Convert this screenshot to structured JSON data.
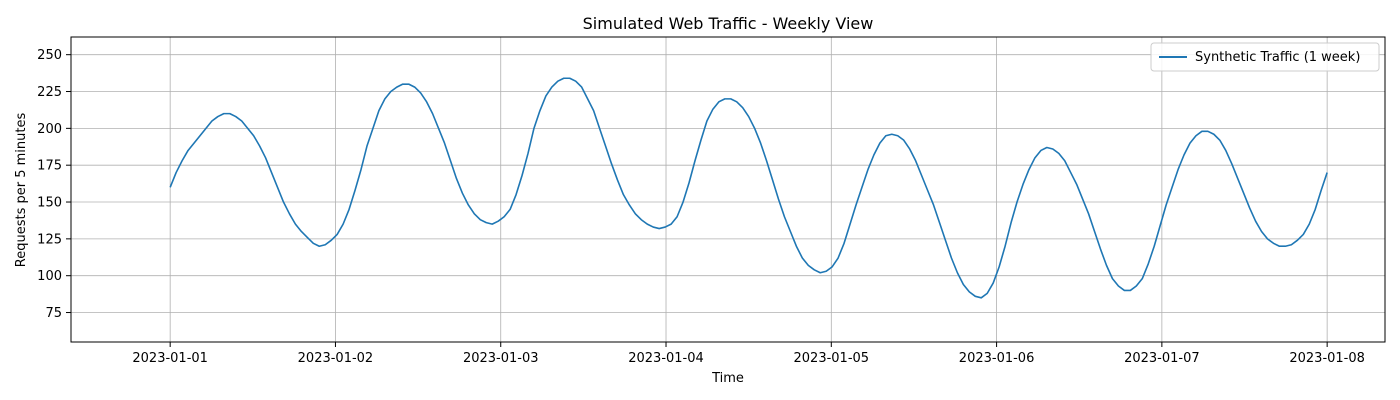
{
  "chart_data": {
    "type": "line",
    "title": "Simulated Web Traffic - Weekly View",
    "xlabel": "Time",
    "ylabel": "Requests per 5 minutes",
    "x_ticks": [
      "2023-01-01",
      "2023-01-02",
      "2023-01-03",
      "2023-01-04",
      "2023-01-05",
      "2023-01-06",
      "2023-01-07",
      "2023-01-08"
    ],
    "y_ticks": [
      75,
      100,
      125,
      150,
      175,
      200,
      225,
      250
    ],
    "xlim": [
      "2022-12-31T09:36",
      "2023-01-08T08:24"
    ],
    "ylim": [
      55,
      262
    ],
    "grid": true,
    "legend": "top-right",
    "series": [
      {
        "name": "Synthetic Traffic (1 week)",
        "color": "#1f77b4",
        "x_start": "2023-01-01T00:00",
        "x_end": "2023-01-08T00:00",
        "resolution": "hourly",
        "values": [
          160,
          170,
          178,
          185,
          190,
          195,
          200,
          205,
          208,
          210,
          210,
          208,
          205,
          200,
          195,
          188,
          180,
          170,
          160,
          150,
          142,
          135,
          130,
          126,
          122,
          120,
          121,
          124,
          128,
          135,
          145,
          158,
          172,
          188,
          200,
          212,
          220,
          225,
          228,
          230,
          230,
          228,
          224,
          218,
          210,
          200,
          190,
          178,
          166,
          156,
          148,
          142,
          138,
          136,
          135,
          137,
          140,
          145,
          155,
          168,
          183,
          200,
          212,
          222,
          228,
          232,
          234,
          234,
          232,
          228,
          220,
          212,
          200,
          188,
          176,
          165,
          155,
          148,
          142,
          138,
          135,
          133,
          132,
          133,
          135,
          140,
          150,
          163,
          178,
          192,
          205,
          213,
          218,
          220,
          220,
          218,
          214,
          208,
          200,
          190,
          178,
          165,
          152,
          140,
          130,
          120,
          112,
          107,
          104,
          102,
          103,
          106,
          112,
          122,
          135,
          148,
          160,
          172,
          182,
          190,
          195,
          196,
          195,
          192,
          186,
          178,
          168,
          158,
          148,
          136,
          124,
          112,
          102,
          94,
          89,
          86,
          85,
          88,
          95,
          106,
          120,
          136,
          150,
          162,
          172,
          180,
          185,
          187,
          186,
          183,
          178,
          170,
          162,
          152,
          142,
          130,
          118,
          107,
          98,
          93,
          90,
          90,
          93,
          98,
          108,
          120,
          134,
          148,
          160,
          172,
          182,
          190,
          195,
          198,
          198,
          196,
          192,
          185,
          176,
          166,
          156,
          146,
          137,
          130,
          125,
          122,
          120,
          120,
          121,
          124,
          128,
          135,
          145,
          158,
          170
        ]
      }
    ]
  }
}
